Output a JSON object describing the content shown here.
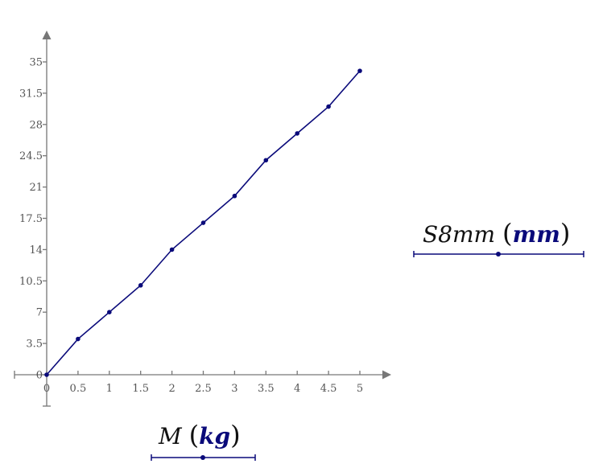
{
  "chart_data": {
    "type": "line",
    "x": [
      0,
      0.5,
      1,
      1.5,
      2,
      2.5,
      3,
      3.5,
      4,
      4.5,
      5
    ],
    "series": [
      {
        "values": [
          0,
          4,
          7,
          10,
          14,
          17,
          20,
          24,
          27,
          30,
          34
        ]
      }
    ],
    "xticks": [
      "0",
      "0.5",
      "1",
      "1.5",
      "2",
      "2.5",
      "3",
      "3.5",
      "4",
      "4.5",
      "5"
    ],
    "yticks": [
      "0",
      "3.5",
      "7",
      "10.5",
      "14",
      "17.5",
      "21",
      "24.5",
      "28",
      "31.5",
      "35"
    ],
    "xlim": [
      0,
      5
    ],
    "ylim": [
      0,
      35
    ],
    "xlabel": {
      "var": "M",
      "unit": "kg"
    },
    "ylabel": {
      "var": "S8mm",
      "unit": "mm"
    },
    "grid": false,
    "line_color": "#0a0a7a",
    "axis_color": "#777777"
  }
}
